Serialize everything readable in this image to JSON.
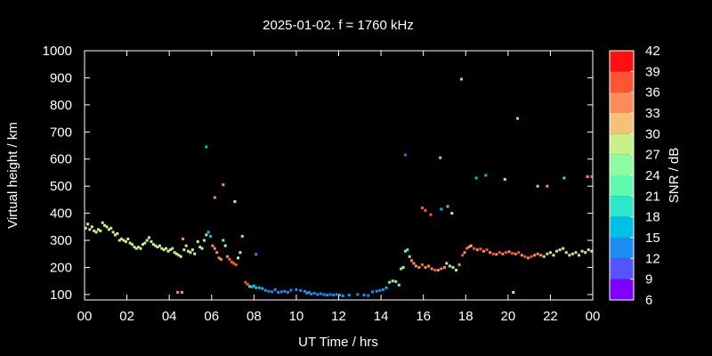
{
  "chart_data": {
    "type": "scatter",
    "title": "2025-01-02. f = 1760 kHz",
    "xlabel": "UT Time / hrs",
    "ylabel": "Virtual height / km",
    "xlim": [
      0,
      24
    ],
    "ylim": [
      80,
      1000
    ],
    "x_ticks": [
      "00",
      "02",
      "04",
      "06",
      "08",
      "10",
      "12",
      "14",
      "16",
      "18",
      "20",
      "22",
      "00"
    ],
    "y_ticks": [
      "100",
      "200",
      "300",
      "400",
      "500",
      "600",
      "700",
      "800",
      "900",
      "1000"
    ],
    "colorbar": {
      "label": "SNR / dB",
      "min": 6,
      "max": 42,
      "ticks": [
        "42",
        "39",
        "36",
        "33",
        "30",
        "27",
        "24",
        "21",
        "18",
        "15",
        "12",
        "9",
        "6"
      ],
      "colors": [
        "#8000ff",
        "#5555ff",
        "#1c8cf3",
        "#00bfe6",
        "#2ee6cc",
        "#60faae",
        "#90faa0",
        "#c8f088",
        "#f2c277",
        "#ff8a5c",
        "#ff5535",
        "#ff1010"
      ]
    },
    "background": "#000000",
    "grid": false,
    "series": [
      {
        "points": [
          [
            0.05,
            345,
            27
          ],
          [
            0.15,
            360,
            28
          ],
          [
            0.25,
            340,
            27
          ],
          [
            0.35,
            350,
            29
          ],
          [
            0.45,
            335,
            28
          ],
          [
            0.55,
            330,
            27
          ],
          [
            0.65,
            340,
            28
          ],
          [
            0.75,
            335,
            29
          ],
          [
            0.85,
            365,
            27
          ],
          [
            0.95,
            355,
            28
          ],
          [
            1.05,
            350,
            27
          ],
          [
            1.15,
            340,
            28
          ],
          [
            1.25,
            345,
            29
          ],
          [
            1.35,
            330,
            27
          ],
          [
            1.45,
            320,
            28
          ],
          [
            1.55,
            325,
            27
          ],
          [
            1.65,
            300,
            28
          ],
          [
            1.75,
            305,
            29
          ],
          [
            1.85,
            300,
            28
          ],
          [
            1.95,
            295,
            27
          ],
          [
            2.05,
            305,
            28
          ],
          [
            2.15,
            290,
            29
          ],
          [
            2.25,
            285,
            27
          ],
          [
            2.35,
            275,
            28
          ],
          [
            2.45,
            270,
            27
          ],
          [
            2.55,
            275,
            28
          ],
          [
            2.65,
            270,
            29
          ],
          [
            2.75,
            285,
            28
          ],
          [
            2.85,
            290,
            27
          ],
          [
            2.95,
            300,
            28
          ],
          [
            3.05,
            310,
            29
          ],
          [
            3.15,
            295,
            28
          ],
          [
            3.25,
            285,
            27
          ],
          [
            3.35,
            280,
            28
          ],
          [
            3.45,
            275,
            27
          ],
          [
            3.55,
            280,
            28
          ],
          [
            3.65,
            270,
            29
          ],
          [
            3.75,
            265,
            28
          ],
          [
            3.85,
            270,
            27
          ],
          [
            3.95,
            260,
            28
          ],
          [
            4.05,
            265,
            29
          ],
          [
            4.15,
            270,
            28
          ],
          [
            4.25,
            255,
            27
          ],
          [
            4.35,
            250,
            28
          ],
          [
            4.45,
            245,
            29
          ],
          [
            4.55,
            240,
            27
          ],
          [
            4.65,
            305,
            34
          ],
          [
            4.7,
            265,
            28
          ],
          [
            4.8,
            280,
            27
          ],
          [
            4.9,
            260,
            28
          ],
          [
            5.0,
            255,
            29
          ],
          [
            5.1,
            265,
            27
          ],
          [
            5.2,
            250,
            28
          ],
          [
            5.35,
            295,
            27
          ],
          [
            5.45,
            275,
            28
          ],
          [
            5.55,
            270,
            29
          ],
          [
            5.65,
            300,
            26
          ],
          [
            5.75,
            320,
            26
          ],
          [
            5.85,
            330,
            16
          ],
          [
            5.95,
            315,
            16
          ],
          [
            6.05,
            280,
            35
          ],
          [
            6.15,
            270,
            35
          ],
          [
            6.25,
            255,
            34
          ],
          [
            6.35,
            235,
            35
          ],
          [
            6.45,
            230,
            34
          ],
          [
            6.55,
            300,
            23
          ],
          [
            6.65,
            280,
            24
          ],
          [
            6.75,
            240,
            35
          ],
          [
            6.85,
            230,
            36
          ],
          [
            6.95,
            220,
            37
          ],
          [
            7.05,
            215,
            37
          ],
          [
            7.15,
            210,
            37
          ],
          [
            7.25,
            235,
            27
          ],
          [
            7.35,
            255,
            28
          ],
          [
            7.45,
            315,
            23
          ],
          [
            7.6,
            145,
            37
          ],
          [
            7.7,
            138,
            38
          ],
          [
            7.8,
            130,
            18
          ],
          [
            7.9,
            128,
            17
          ],
          [
            8.0,
            132,
            17
          ],
          [
            8.1,
            125,
            16
          ],
          [
            8.25,
            125,
            15
          ],
          [
            8.4,
            122,
            15
          ],
          [
            8.55,
            115,
            14
          ],
          [
            8.7,
            112,
            14
          ],
          [
            8.85,
            110,
            13
          ],
          [
            9.0,
            118,
            14
          ],
          [
            9.15,
            108,
            13
          ],
          [
            9.3,
            110,
            14
          ],
          [
            9.45,
            112,
            14
          ],
          [
            9.6,
            108,
            13
          ],
          [
            9.75,
            116,
            14
          ],
          [
            10.0,
            118,
            14
          ],
          [
            10.2,
            115,
            13
          ],
          [
            10.4,
            112,
            14
          ],
          [
            10.5,
            105,
            13
          ],
          [
            10.6,
            108,
            14
          ],
          [
            10.7,
            102,
            13
          ],
          [
            10.85,
            105,
            14
          ],
          [
            11.0,
            100,
            13
          ],
          [
            11.15,
            103,
            14
          ],
          [
            11.3,
            100,
            13
          ],
          [
            11.45,
            98,
            13
          ],
          [
            11.6,
            100,
            14
          ],
          [
            11.75,
            98,
            13
          ],
          [
            11.9,
            100,
            14
          ],
          [
            12.05,
            98,
            13
          ],
          [
            12.2,
            95,
            13
          ],
          [
            12.5,
            98,
            13
          ],
          [
            12.9,
            100,
            13
          ],
          [
            13.2,
            98,
            13
          ],
          [
            13.4,
            96,
            13
          ],
          [
            13.6,
            110,
            13
          ],
          [
            13.8,
            112,
            14
          ],
          [
            13.95,
            115,
            13
          ],
          [
            14.1,
            118,
            14
          ],
          [
            14.25,
            125,
            15
          ],
          [
            14.4,
            145,
            23
          ],
          [
            14.55,
            150,
            24
          ],
          [
            14.7,
            148,
            24
          ],
          [
            14.85,
            135,
            23
          ],
          [
            14.95,
            195,
            25
          ],
          [
            15.05,
            200,
            26
          ],
          [
            15.15,
            260,
            22
          ],
          [
            15.25,
            265,
            21
          ],
          [
            15.35,
            240,
            30
          ],
          [
            15.45,
            225,
            33
          ],
          [
            15.55,
            215,
            34
          ],
          [
            15.65,
            205,
            35
          ],
          [
            15.8,
            200,
            35
          ],
          [
            15.95,
            210,
            36
          ],
          [
            16.1,
            200,
            35
          ],
          [
            16.25,
            205,
            34
          ],
          [
            16.4,
            195,
            35
          ],
          [
            16.55,
            190,
            36
          ],
          [
            16.7,
            190,
            35
          ],
          [
            16.85,
            195,
            34
          ],
          [
            17.0,
            200,
            35
          ],
          [
            17.1,
            215,
            28
          ],
          [
            17.25,
            205,
            28
          ],
          [
            17.4,
            200,
            27
          ],
          [
            17.55,
            190,
            26
          ],
          [
            17.7,
            210,
            35
          ],
          [
            17.85,
            245,
            36
          ],
          [
            17.95,
            255,
            35
          ],
          [
            18.05,
            270,
            36
          ],
          [
            18.15,
            275,
            35
          ],
          [
            18.25,
            280,
            30
          ],
          [
            18.4,
            270,
            36
          ],
          [
            18.55,
            265,
            35
          ],
          [
            18.7,
            268,
            36
          ],
          [
            18.85,
            260,
            35
          ],
          [
            19.0,
            265,
            36
          ],
          [
            19.15,
            255,
            35
          ],
          [
            19.3,
            250,
            36
          ],
          [
            19.45,
            248,
            35
          ],
          [
            19.6,
            255,
            36
          ],
          [
            19.75,
            250,
            35
          ],
          [
            19.9,
            255,
            36
          ],
          [
            20.05,
            258,
            35
          ],
          [
            20.2,
            252,
            36
          ],
          [
            20.35,
            250,
            35
          ],
          [
            20.5,
            255,
            36
          ],
          [
            20.65,
            245,
            35
          ],
          [
            20.8,
            240,
            36
          ],
          [
            20.95,
            235,
            35
          ],
          [
            21.1,
            240,
            36
          ],
          [
            21.25,
            245,
            35
          ],
          [
            21.4,
            250,
            34
          ],
          [
            21.55,
            245,
            35
          ],
          [
            21.7,
            240,
            30
          ],
          [
            21.85,
            250,
            28
          ],
          [
            22.0,
            255,
            27
          ],
          [
            22.15,
            245,
            28
          ],
          [
            22.3,
            260,
            29
          ],
          [
            22.45,
            265,
            27
          ],
          [
            22.6,
            270,
            28
          ],
          [
            22.75,
            255,
            27
          ],
          [
            22.9,
            245,
            28
          ],
          [
            23.05,
            250,
            29
          ],
          [
            23.2,
            255,
            27
          ],
          [
            23.35,
            245,
            28
          ],
          [
            23.5,
            260,
            29
          ],
          [
            23.65,
            255,
            28
          ],
          [
            23.8,
            265,
            27
          ],
          [
            23.95,
            260,
            28
          ]
        ]
      },
      {
        "points": [
          [
            4.4,
            108,
            34
          ],
          [
            4.6,
            108,
            35
          ],
          [
            5.75,
            645,
            16
          ],
          [
            6.15,
            458,
            35
          ],
          [
            6.55,
            505,
            33
          ],
          [
            7.1,
            443,
            29
          ],
          [
            8.1,
            248,
            14
          ],
          [
            15.15,
            615,
            9
          ],
          [
            15.95,
            420,
            37
          ],
          [
            16.1,
            410,
            38
          ],
          [
            16.35,
            395,
            36
          ],
          [
            16.8,
            605,
            22
          ],
          [
            16.85,
            415,
            16
          ],
          [
            17.15,
            425,
            34
          ],
          [
            17.35,
            400,
            29
          ],
          [
            17.8,
            895,
            23
          ],
          [
            18.5,
            530,
            16
          ],
          [
            18.95,
            540,
            16
          ],
          [
            19.85,
            525,
            27
          ],
          [
            20.25,
            108,
            27
          ],
          [
            20.45,
            750,
            22
          ],
          [
            21.4,
            500,
            30
          ],
          [
            21.85,
            500,
            35
          ],
          [
            22.65,
            530,
            18
          ],
          [
            23.75,
            535,
            35
          ],
          [
            23.95,
            535,
            36
          ]
        ]
      }
    ]
  }
}
